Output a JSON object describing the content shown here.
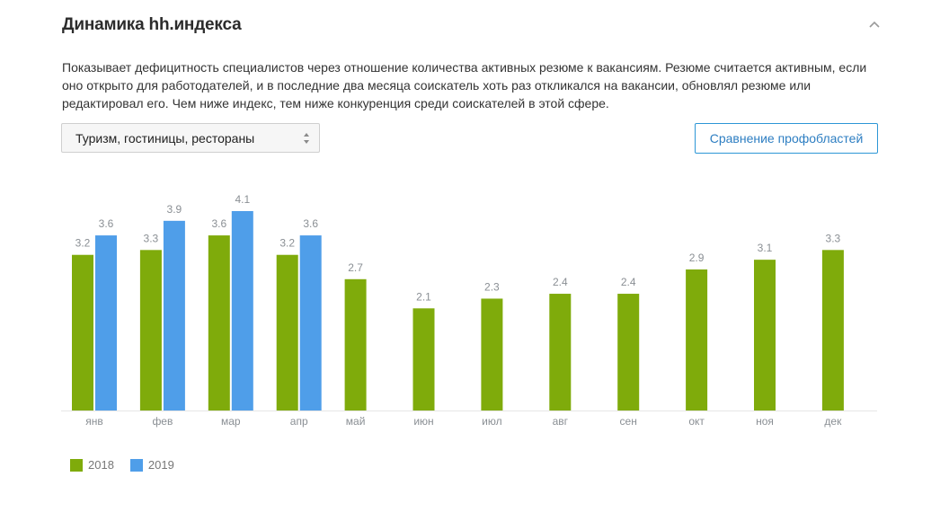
{
  "widget": {
    "title": "Динамика hh.индекса",
    "description": "Показывает дефицитность специалистов через отношение количества активных резюме к вакансиям. Резюме считается активным, если оно открыто для работодателей, и в последние два месяца соискатель хоть раз откликался на вакансии, обновлял резюме или редактировал его. Чем ниже индекс, тем ниже конкуренция среди соискателей в этой сфере.",
    "collapse_icon": "chevron-up-icon",
    "select_icon": "sort-arrows-icon"
  },
  "filter": {
    "selected": "Туризм, гостиницы, рестораны"
  },
  "compare_button": {
    "label": "Сравнение профобластей"
  },
  "chart_data": {
    "type": "bar",
    "categories": [
      "янв",
      "фев",
      "мар",
      "апр",
      "май",
      "июн",
      "июл",
      "авг",
      "сен",
      "окт",
      "ноя",
      "дек"
    ],
    "series": [
      {
        "name": "2018",
        "color": "#7fab0b",
        "values": [
          3.2,
          3.3,
          3.6,
          3.2,
          2.7,
          2.1,
          2.3,
          2.4,
          2.4,
          2.9,
          3.1,
          3.3
        ]
      },
      {
        "name": "2019",
        "color": "#4f9ee9",
        "values": [
          3.6,
          3.9,
          4.1,
          3.6,
          null,
          null,
          null,
          null,
          null,
          null,
          null,
          null
        ]
      }
    ],
    "ylim": [
      0,
      4.1
    ],
    "grid": false,
    "legend": "bottom-left"
  }
}
